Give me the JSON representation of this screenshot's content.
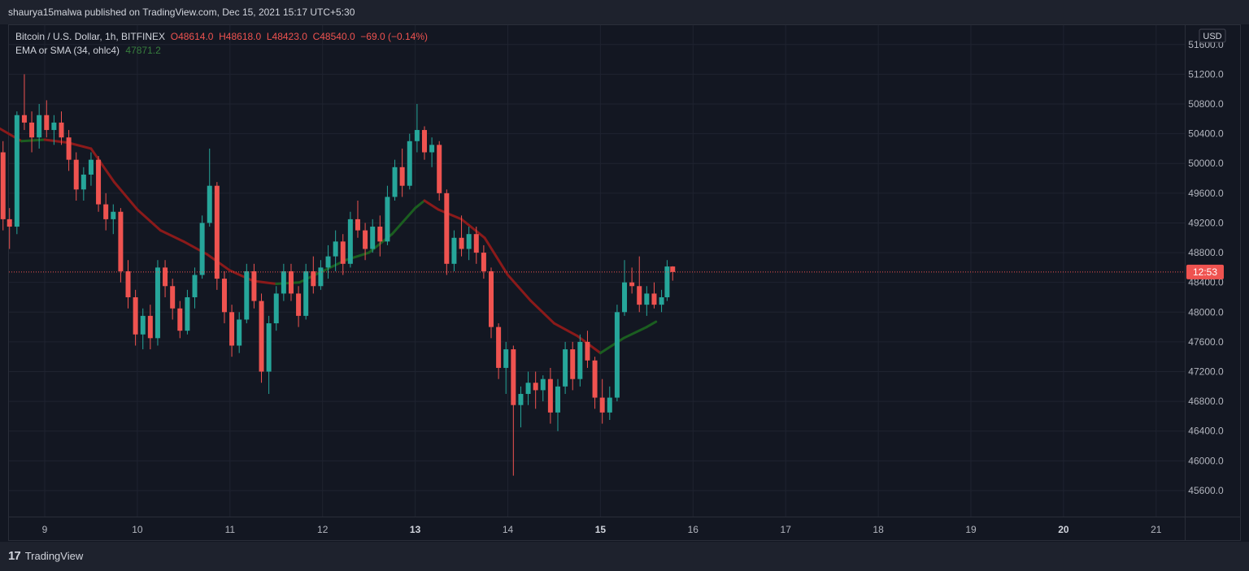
{
  "header": {
    "published_by": "shaurya15malwa published on TradingView.com, Dec 15, 2021 15:17 UTC+5:30"
  },
  "legend": {
    "symbol": "Bitcoin / U.S. Dollar, 1h, BITFINEX",
    "open": "O48614.0",
    "high": "H48618.0",
    "low": "L48423.0",
    "close": "C48540.0",
    "change": "−69.0 (−0.14%)",
    "indicator_label": "EMA or SMA (34, ohlc4)",
    "indicator_value": "47871.2"
  },
  "footer": {
    "brand": "TradingView",
    "brand_logo_text": "17"
  },
  "colors": {
    "background": "#131722",
    "grid": "#1f2330",
    "up": "#26a69a",
    "down": "#ef5350",
    "ma_rising": "#1b5e20",
    "ma_falling": "#8b1a1a",
    "price_line": "#ef5350",
    "text": "#b2b5be"
  },
  "chart_data": {
    "type": "candlestick",
    "title": "Bitcoin / U.S. Dollar, 1h, BITFINEX",
    "currency": "USD",
    "grid": true,
    "yaxis_side": "right",
    "ylim": [
      45250,
      51860
    ],
    "ytick_labels": [
      "45600.0",
      "46000.0",
      "46400.0",
      "46800.0",
      "47200.0",
      "47600.0",
      "48000.0",
      "48400.0",
      "48800.0",
      "49200.0",
      "49600.0",
      "50000.0",
      "50400.0",
      "50800.0",
      "51200.0",
      "51600.0"
    ],
    "x_tick_labels": [
      "9",
      "10",
      "11",
      "12",
      "13",
      "14",
      "15",
      "16",
      "17",
      "18",
      "19",
      "20",
      "21"
    ],
    "x_bold_labels": [
      "13",
      "15",
      "20"
    ],
    "last_price": 48540.0,
    "last_price_label": "12:53",
    "moving_average": {
      "name": "EMA or SMA (34, ohlc4)",
      "last_value": 47871.2,
      "anchors": [
        {
          "day": 8.5,
          "value": 50480
        },
        {
          "day": 8.75,
          "value": 50300
        },
        {
          "day": 9.0,
          "value": 50320
        },
        {
          "day": 9.25,
          "value": 50280
        },
        {
          "day": 9.5,
          "value": 50200
        },
        {
          "day": 9.75,
          "value": 49750
        },
        {
          "day": 10.0,
          "value": 49380
        },
        {
          "day": 10.25,
          "value": 49100
        },
        {
          "day": 10.5,
          "value": 48950
        },
        {
          "day": 10.75,
          "value": 48780
        },
        {
          "day": 11.0,
          "value": 48560
        },
        {
          "day": 11.25,
          "value": 48420
        },
        {
          "day": 11.5,
          "value": 48380
        },
        {
          "day": 11.75,
          "value": 48400
        },
        {
          "day": 12.0,
          "value": 48550
        },
        {
          "day": 12.25,
          "value": 48700
        },
        {
          "day": 12.5,
          "value": 48800
        },
        {
          "day": 12.75,
          "value": 49050
        },
        {
          "day": 13.0,
          "value": 49400
        },
        {
          "day": 13.1,
          "value": 49500
        },
        {
          "day": 13.25,
          "value": 49380
        },
        {
          "day": 13.5,
          "value": 49250
        },
        {
          "day": 13.75,
          "value": 49000
        },
        {
          "day": 14.0,
          "value": 48500
        },
        {
          "day": 14.25,
          "value": 48150
        },
        {
          "day": 14.5,
          "value": 47850
        },
        {
          "day": 14.75,
          "value": 47680
        },
        {
          "day": 15.0,
          "value": 47450
        },
        {
          "day": 15.25,
          "value": 47650
        },
        {
          "day": 15.5,
          "value": 47800
        },
        {
          "day": 15.6,
          "value": 47871
        }
      ]
    },
    "candles": [
      {
        "day": 8.55,
        "o": 50150,
        "h": 50300,
        "l": 49100,
        "c": 49250
      },
      {
        "day": 8.62,
        "o": 49250,
        "h": 49400,
        "l": 48850,
        "c": 49150
      },
      {
        "day": 8.7,
        "o": 49150,
        "h": 50700,
        "l": 49050,
        "c": 50650
      },
      {
        "day": 8.78,
        "o": 50650,
        "h": 51200,
        "l": 50450,
        "c": 50550
      },
      {
        "day": 8.86,
        "o": 50550,
        "h": 50700,
        "l": 50150,
        "c": 50350
      },
      {
        "day": 8.94,
        "o": 50350,
        "h": 50800,
        "l": 50200,
        "c": 50650
      },
      {
        "day": 9.02,
        "o": 50650,
        "h": 50850,
        "l": 50350,
        "c": 50450
      },
      {
        "day": 9.1,
        "o": 50450,
        "h": 50650,
        "l": 50250,
        "c": 50550
      },
      {
        "day": 9.18,
        "o": 50550,
        "h": 50700,
        "l": 50250,
        "c": 50350
      },
      {
        "day": 9.26,
        "o": 50350,
        "h": 50450,
        "l": 49900,
        "c": 50050
      },
      {
        "day": 9.34,
        "o": 50050,
        "h": 50150,
        "l": 49500,
        "c": 49650
      },
      {
        "day": 9.42,
        "o": 49650,
        "h": 49950,
        "l": 49500,
        "c": 49850
      },
      {
        "day": 9.5,
        "o": 49850,
        "h": 50150,
        "l": 49700,
        "c": 50050
      },
      {
        "day": 9.58,
        "o": 50050,
        "h": 50100,
        "l": 49350,
        "c": 49450
      },
      {
        "day": 9.66,
        "o": 49450,
        "h": 49600,
        "l": 49100,
        "c": 49250
      },
      {
        "day": 9.74,
        "o": 49250,
        "h": 49450,
        "l": 49050,
        "c": 49350
      },
      {
        "day": 9.82,
        "o": 49350,
        "h": 49400,
        "l": 48400,
        "c": 48550
      },
      {
        "day": 9.9,
        "o": 48550,
        "h": 48700,
        "l": 48050,
        "c": 48200
      },
      {
        "day": 9.98,
        "o": 48200,
        "h": 48300,
        "l": 47550,
        "c": 47700
      },
      {
        "day": 10.06,
        "o": 47700,
        "h": 48050,
        "l": 47500,
        "c": 47950
      },
      {
        "day": 10.14,
        "o": 47950,
        "h": 48100,
        "l": 47500,
        "c": 47650
      },
      {
        "day": 10.22,
        "o": 47650,
        "h": 48700,
        "l": 47550,
        "c": 48600
      },
      {
        "day": 10.3,
        "o": 48600,
        "h": 48700,
        "l": 48200,
        "c": 48350
      },
      {
        "day": 10.38,
        "o": 48350,
        "h": 48450,
        "l": 47900,
        "c": 48050
      },
      {
        "day": 10.46,
        "o": 48050,
        "h": 48150,
        "l": 47650,
        "c": 47750
      },
      {
        "day": 10.54,
        "o": 47750,
        "h": 48300,
        "l": 47700,
        "c": 48200
      },
      {
        "day": 10.62,
        "o": 48200,
        "h": 48600,
        "l": 48050,
        "c": 48500
      },
      {
        "day": 10.7,
        "o": 48500,
        "h": 49300,
        "l": 48450,
        "c": 49200
      },
      {
        "day": 10.78,
        "o": 49200,
        "h": 50200,
        "l": 49150,
        "c": 49700
      },
      {
        "day": 10.86,
        "o": 49700,
        "h": 49750,
        "l": 48300,
        "c": 48450
      },
      {
        "day": 10.94,
        "o": 48450,
        "h": 48550,
        "l": 47850,
        "c": 48000
      },
      {
        "day": 11.02,
        "o": 48000,
        "h": 48100,
        "l": 47400,
        "c": 47550
      },
      {
        "day": 11.1,
        "o": 47550,
        "h": 48000,
        "l": 47450,
        "c": 47900
      },
      {
        "day": 11.18,
        "o": 47900,
        "h": 48650,
        "l": 47850,
        "c": 48550
      },
      {
        "day": 11.26,
        "o": 48550,
        "h": 48650,
        "l": 48050,
        "c": 48150
      },
      {
        "day": 11.34,
        "o": 48150,
        "h": 48250,
        "l": 47050,
        "c": 47200
      },
      {
        "day": 11.42,
        "o": 47200,
        "h": 47950,
        "l": 46900,
        "c": 47850
      },
      {
        "day": 11.5,
        "o": 47850,
        "h": 48350,
        "l": 47750,
        "c": 48250
      },
      {
        "day": 11.58,
        "o": 48250,
        "h": 48650,
        "l": 48150,
        "c": 48550
      },
      {
        "day": 11.66,
        "o": 48550,
        "h": 48650,
        "l": 48150,
        "c": 48250
      },
      {
        "day": 11.74,
        "o": 48250,
        "h": 48350,
        "l": 47800,
        "c": 47950
      },
      {
        "day": 11.82,
        "o": 47950,
        "h": 48650,
        "l": 47900,
        "c": 48550
      },
      {
        "day": 11.9,
        "o": 48550,
        "h": 48750,
        "l": 48250,
        "c": 48350
      },
      {
        "day": 11.98,
        "o": 48350,
        "h": 48700,
        "l": 48300,
        "c": 48600
      },
      {
        "day": 12.06,
        "o": 48600,
        "h": 48900,
        "l": 48450,
        "c": 48750
      },
      {
        "day": 12.14,
        "o": 48750,
        "h": 49100,
        "l": 48550,
        "c": 48950
      },
      {
        "day": 12.22,
        "o": 48950,
        "h": 49050,
        "l": 48500,
        "c": 48650
      },
      {
        "day": 12.3,
        "o": 48650,
        "h": 49350,
        "l": 48600,
        "c": 49250
      },
      {
        "day": 12.38,
        "o": 49250,
        "h": 49500,
        "l": 49000,
        "c": 49100
      },
      {
        "day": 12.46,
        "o": 49100,
        "h": 49200,
        "l": 48700,
        "c": 48850
      },
      {
        "day": 12.54,
        "o": 48850,
        "h": 49250,
        "l": 48800,
        "c": 49150
      },
      {
        "day": 12.62,
        "o": 49150,
        "h": 49300,
        "l": 48750,
        "c": 48950
      },
      {
        "day": 12.7,
        "o": 48950,
        "h": 49700,
        "l": 48900,
        "c": 49550
      },
      {
        "day": 12.78,
        "o": 49550,
        "h": 50050,
        "l": 49500,
        "c": 49950
      },
      {
        "day": 12.86,
        "o": 49950,
        "h": 50200,
        "l": 49550,
        "c": 49700
      },
      {
        "day": 12.94,
        "o": 49700,
        "h": 50400,
        "l": 49650,
        "c": 50300
      },
      {
        "day": 13.02,
        "o": 50300,
        "h": 50800,
        "l": 50150,
        "c": 50450
      },
      {
        "day": 13.1,
        "o": 50450,
        "h": 50500,
        "l": 50050,
        "c": 50150
      },
      {
        "day": 13.18,
        "o": 50150,
        "h": 50350,
        "l": 49950,
        "c": 50250
      },
      {
        "day": 13.26,
        "o": 50250,
        "h": 50300,
        "l": 49500,
        "c": 49600
      },
      {
        "day": 13.34,
        "o": 49600,
        "h": 49650,
        "l": 48500,
        "c": 48650
      },
      {
        "day": 13.42,
        "o": 48650,
        "h": 49100,
        "l": 48550,
        "c": 49000
      },
      {
        "day": 13.5,
        "o": 49000,
        "h": 49300,
        "l": 48750,
        "c": 48850
      },
      {
        "day": 13.58,
        "o": 48850,
        "h": 49150,
        "l": 48700,
        "c": 49050
      },
      {
        "day": 13.66,
        "o": 49050,
        "h": 49150,
        "l": 48650,
        "c": 48800
      },
      {
        "day": 13.74,
        "o": 48800,
        "h": 48900,
        "l": 48450,
        "c": 48550
      },
      {
        "day": 13.82,
        "o": 48550,
        "h": 48600,
        "l": 47650,
        "c": 47800
      },
      {
        "day": 13.9,
        "o": 47800,
        "h": 47850,
        "l": 47100,
        "c": 47250
      },
      {
        "day": 13.98,
        "o": 47250,
        "h": 47600,
        "l": 46900,
        "c": 47500
      },
      {
        "day": 14.06,
        "o": 47500,
        "h": 47550,
        "l": 45800,
        "c": 46750
      },
      {
        "day": 14.14,
        "o": 46750,
        "h": 47000,
        "l": 46450,
        "c": 46900
      },
      {
        "day": 14.22,
        "o": 46900,
        "h": 47200,
        "l": 46750,
        "c": 47050
      },
      {
        "day": 14.3,
        "o": 47050,
        "h": 47200,
        "l": 46700,
        "c": 46950
      },
      {
        "day": 14.38,
        "o": 46950,
        "h": 47150,
        "l": 46800,
        "c": 47100
      },
      {
        "day": 14.46,
        "o": 47100,
        "h": 47250,
        "l": 46500,
        "c": 46650
      },
      {
        "day": 14.54,
        "o": 46650,
        "h": 47100,
        "l": 46400,
        "c": 47000
      },
      {
        "day": 14.62,
        "o": 47000,
        "h": 47600,
        "l": 46900,
        "c": 47500
      },
      {
        "day": 14.7,
        "o": 47500,
        "h": 47600,
        "l": 46950,
        "c": 47100
      },
      {
        "day": 14.78,
        "o": 47100,
        "h": 47700,
        "l": 47000,
        "c": 47600
      },
      {
        "day": 14.86,
        "o": 47600,
        "h": 47750,
        "l": 47250,
        "c": 47350
      },
      {
        "day": 14.94,
        "o": 47350,
        "h": 47400,
        "l": 46700,
        "c": 46850
      },
      {
        "day": 15.02,
        "o": 46850,
        "h": 47100,
        "l": 46500,
        "c": 46650
      },
      {
        "day": 15.1,
        "o": 46650,
        "h": 47000,
        "l": 46550,
        "c": 46850
      },
      {
        "day": 15.18,
        "o": 46850,
        "h": 48100,
        "l": 46800,
        "c": 48000
      },
      {
        "day": 15.26,
        "o": 48000,
        "h": 48700,
        "l": 47950,
        "c": 48400
      },
      {
        "day": 15.34,
        "o": 48400,
        "h": 48600,
        "l": 48250,
        "c": 48350
      },
      {
        "day": 15.42,
        "o": 48350,
        "h": 48750,
        "l": 48000,
        "c": 48100
      },
      {
        "day": 15.5,
        "o": 48100,
        "h": 48350,
        "l": 47950,
        "c": 48250
      },
      {
        "day": 15.58,
        "o": 48250,
        "h": 48400,
        "l": 48050,
        "c": 48100
      },
      {
        "day": 15.66,
        "o": 48100,
        "h": 48300,
        "l": 48000,
        "c": 48200
      },
      {
        "day": 15.72,
        "o": 48200,
        "h": 48700,
        "l": 48150,
        "c": 48614
      },
      {
        "day": 15.78,
        "o": 48614,
        "h": 48618,
        "l": 48423,
        "c": 48540
      }
    ]
  }
}
